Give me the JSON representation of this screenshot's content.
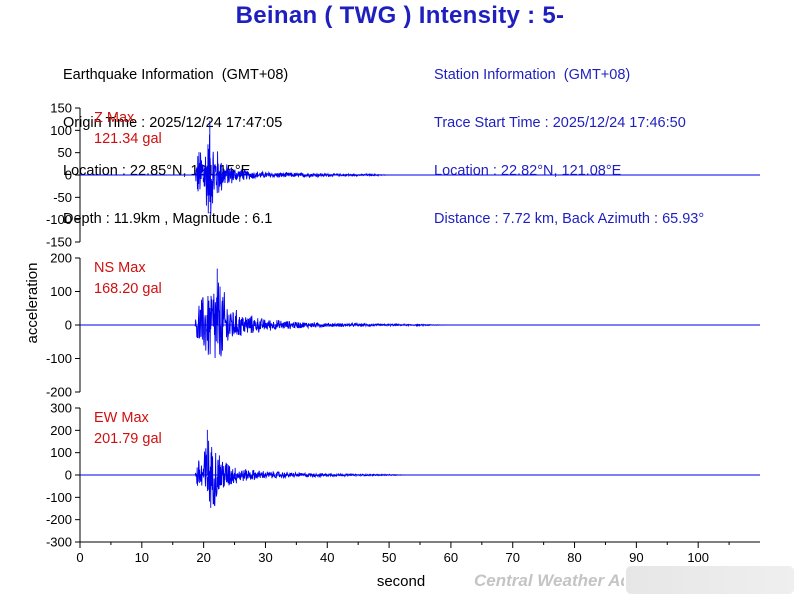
{
  "title": "Beinan ( TWG ) Intensity : 5-",
  "earthquake_info": {
    "heading": "Earthquake Information  (GMT+08)",
    "origin_time": "Origin Time : 2025/12/24 17:47:05",
    "location": "Location : 22.85°N, 121.15°E",
    "depth_magnitude": "Depth : 11.9km , Magnitude : 6.1"
  },
  "station_info": {
    "heading": "Station Information  (GMT+08)",
    "trace_start": "Trace Start Time : 2025/12/24 17:46:50",
    "location": "Location : 22.82°N, 121.08°E",
    "distance": "Distance : 7.72 km, Back Azimuth : 65.93°"
  },
  "watermark": "Central Weather Administration",
  "colors": {
    "title": "#1f1fbf",
    "trace": "#0000ee",
    "peak_label": "#d01010",
    "station_info": "#1f1fbf"
  },
  "chart_data": {
    "type": "line",
    "xlabel": "second",
    "ylabel": "acceleration",
    "xlim": [
      0,
      110
    ],
    "x_ticks": [
      0,
      10,
      20,
      30,
      40,
      50,
      60,
      70,
      80,
      90,
      100
    ],
    "panels": [
      {
        "name": "Z",
        "peak_label": "Z Max",
        "peak_value": "121.34 gal",
        "ylim": [
          -150,
          150
        ],
        "y_ticks": [
          150,
          100,
          50,
          0,
          -50,
          -100,
          -150
        ],
        "envelope": [
          [
            18.6,
            0
          ],
          [
            19.0,
            60
          ],
          [
            19.5,
            70
          ],
          [
            20.0,
            85
          ],
          [
            20.5,
            90
          ],
          [
            21.0,
            121.34
          ],
          [
            21.5,
            90
          ],
          [
            22.0,
            75
          ],
          [
            22.5,
            55
          ],
          [
            23.5,
            30
          ],
          [
            25,
            20
          ],
          [
            27,
            12
          ],
          [
            30,
            8
          ],
          [
            35,
            6
          ],
          [
            40,
            4
          ],
          [
            45,
            2.5
          ],
          [
            48,
            2
          ],
          [
            50,
            0
          ]
        ]
      },
      {
        "name": "NS",
        "peak_label": "NS Max",
        "peak_value": "168.20 gal",
        "ylim": [
          -200,
          200
        ],
        "y_ticks": [
          200,
          100,
          0,
          -100,
          -200
        ],
        "envelope": [
          [
            18.6,
            0
          ],
          [
            19.0,
            80
          ],
          [
            20.0,
            100
          ],
          [
            21.0,
            135
          ],
          [
            21.7,
            150
          ],
          [
            22.2,
            168.2
          ],
          [
            22.8,
            140
          ],
          [
            23.5,
            100
          ],
          [
            24.5,
            60
          ],
          [
            26,
            40
          ],
          [
            28,
            30
          ],
          [
            30,
            20
          ],
          [
            35,
            12
          ],
          [
            40,
            7
          ],
          [
            45,
            5
          ],
          [
            50,
            3
          ],
          [
            56,
            2
          ],
          [
            60,
            0
          ]
        ]
      },
      {
        "name": "EW",
        "peak_label": "EW Max",
        "peak_value": "201.79 gal",
        "ylim": [
          -300,
          300
        ],
        "y_ticks": [
          300,
          200,
          100,
          0,
          -100,
          -200,
          -300
        ],
        "envelope": [
          [
            18.6,
            0
          ],
          [
            19.0,
            80
          ],
          [
            19.8,
            120
          ],
          [
            20.6,
            201.79
          ],
          [
            21.3,
            150
          ],
          [
            22.0,
            160
          ],
          [
            22.7,
            110
          ],
          [
            23.5,
            80
          ],
          [
            25,
            45
          ],
          [
            27,
            30
          ],
          [
            30,
            20
          ],
          [
            35,
            12
          ],
          [
            40,
            8
          ],
          [
            45,
            5
          ],
          [
            50,
            3
          ],
          [
            53,
            0
          ]
        ]
      }
    ]
  }
}
